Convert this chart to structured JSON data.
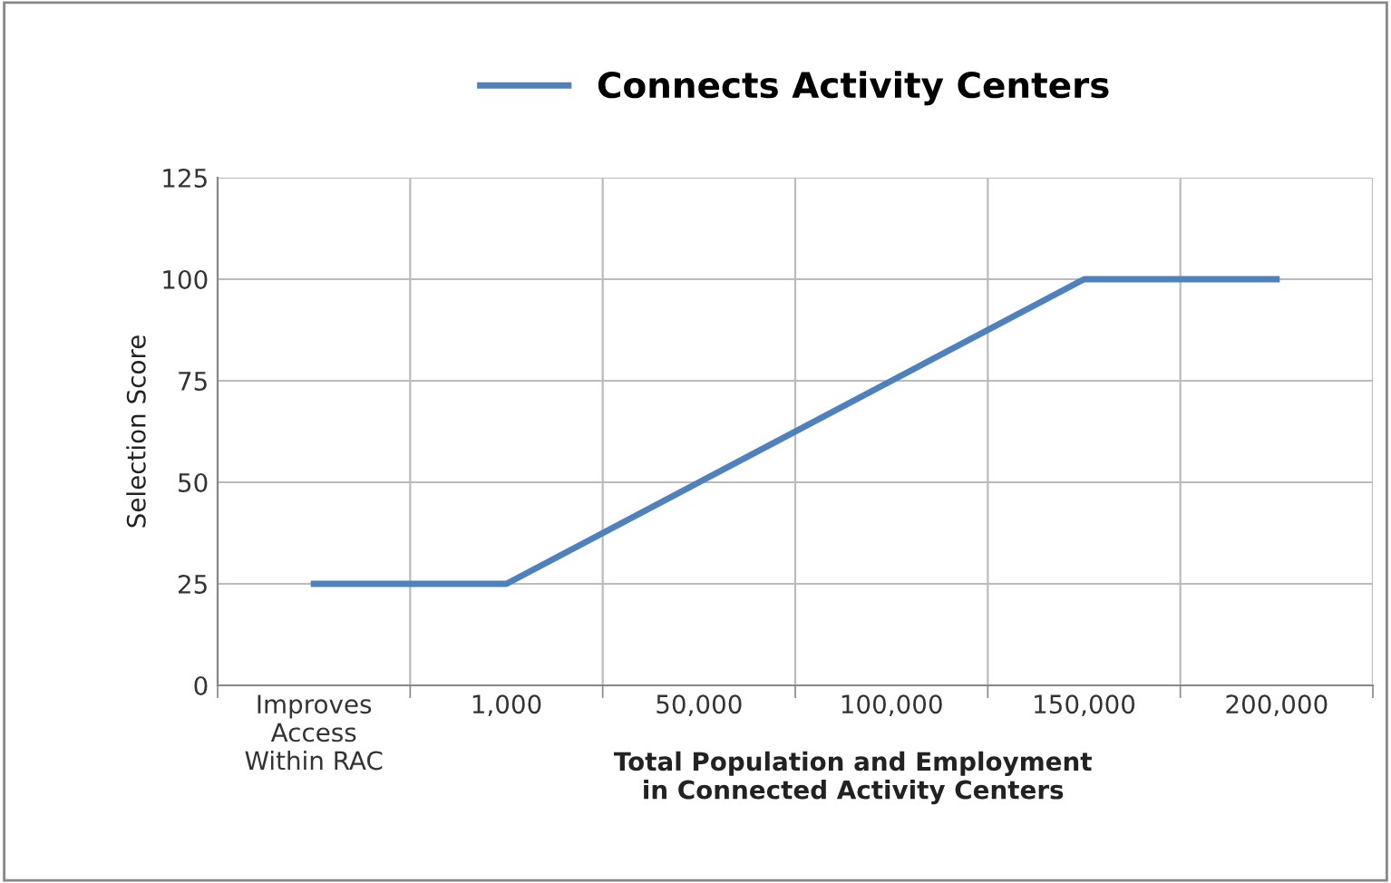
{
  "chart_data": {
    "type": "line",
    "xlabel": "Total Population and Employment\nin Connected Activity Centers",
    "ylabel": "Selection Score",
    "categories": [
      "Improves\nAccess\nWithin RAC",
      "1,000",
      "50,000",
      "100,000",
      "150,000",
      "200,000"
    ],
    "series": [
      {
        "name": "Connects Activity Centers",
        "color": "#4f81bd",
        "values": [
          25,
          25,
          50,
          75,
          100,
          100
        ]
      }
    ],
    "ylim": [
      0,
      125
    ],
    "yticks": [
      0,
      25,
      50,
      75,
      100,
      125
    ],
    "grid": true,
    "legend": "top",
    "marker": "none",
    "line_style": "solid"
  }
}
